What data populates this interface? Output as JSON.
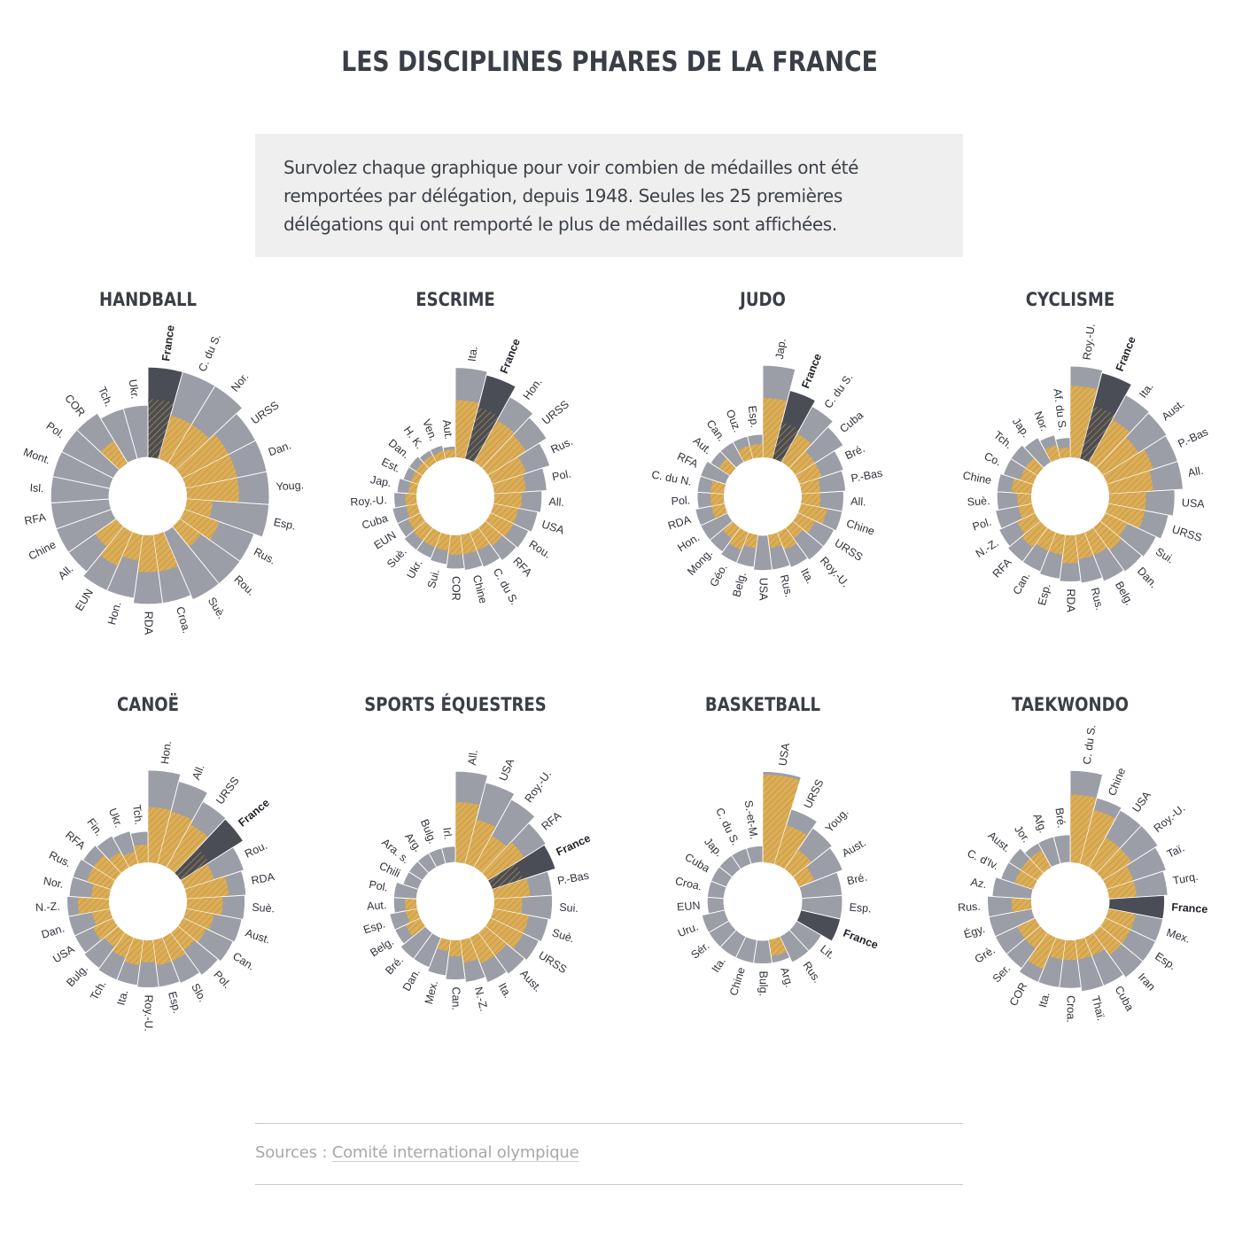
{
  "page": {
    "title": "LES DISCIPLINES PHARES DE LA FRANCE",
    "intro": "Survolez chaque graphique pour voir combien de médailles ont été remportées par délégation, depuis 1948. Seules les 25 premières délégations qui ont remporté le plus de médailles sont affichées.",
    "sources_prefix": "Sources : ",
    "sources_link": "Comité international olympique"
  },
  "colors": {
    "total": "#9b9ea6",
    "gold": "#dcae58",
    "france": "#4a4d56",
    "title": "#3a3e46",
    "box_bg": "#efefef"
  },
  "chart_data": [
    {
      "type": "radial-bar",
      "title": "HANDBALL",
      "categories": [
        "France",
        "C. du S.",
        "Nor.",
        "URSS",
        "Dan.",
        "Youg.",
        "Esp.",
        "Rus.",
        "Rou.",
        "Suè.",
        "Croa.",
        "RDA",
        "Hon.",
        "EUN",
        "All.",
        "Chine",
        "RFA",
        "Isl.",
        "Mont.",
        "Pol.",
        "COR",
        "Tch.",
        "Ukr."
      ],
      "series": [
        {
          "name": "total",
          "values": [
            12,
            12,
            12,
            10,
            10,
            10,
            10,
            8,
            8,
            8,
            7,
            7,
            6,
            6,
            5,
            5,
            5,
            5,
            5,
            5,
            5,
            4,
            4
          ]
        },
        {
          "name": "gold",
          "values": [
            5,
            3,
            3,
            4,
            4,
            4,
            1,
            2,
            1,
            0,
            2,
            2,
            1,
            2,
            1,
            0,
            0,
            0,
            0,
            0,
            1,
            0,
            0
          ]
        }
      ],
      "highlight": "France",
      "rmax": 13
    },
    {
      "type": "radial-bar",
      "title": "ESCRIME",
      "categories": [
        "Ita.",
        "France",
        "Hon.",
        "URSS",
        "Rus.",
        "Pol.",
        "All.",
        "USA",
        "Rou.",
        "RFA",
        "C. du S.",
        "Chine",
        "COR",
        "Sui.",
        "Ukr.",
        "Suè.",
        "EUN",
        "Cuba",
        "Roy.-U.",
        "Jap.",
        "Est.",
        "Dan.",
        "H. K.",
        "Ven.",
        "Aut."
      ],
      "series": [
        {
          "name": "total",
          "values": [
            128,
            118,
            88,
            76,
            58,
            44,
            36,
            32,
            28,
            26,
            22,
            20,
            18,
            14,
            12,
            12,
            10,
            10,
            8,
            6,
            4,
            4,
            3,
            3,
            2
          ]
        },
        {
          "name": "gold",
          "values": [
            52,
            44,
            36,
            32,
            20,
            16,
            12,
            10,
            10,
            8,
            6,
            6,
            6,
            4,
            4,
            4,
            3,
            2,
            2,
            1,
            1,
            1,
            1,
            1,
            1
          ]
        }
      ],
      "highlight": "France",
      "rmax": 140
    },
    {
      "type": "radial-bar",
      "title": "JUDO",
      "categories": [
        "Jap.",
        "France",
        "C. du S.",
        "Cuba",
        "Bré.",
        "P.-Bas",
        "All.",
        "Chine",
        "URSS",
        "Roy.-U.",
        "Ita.",
        "Rus.",
        "USA",
        "Belg.",
        "Géo.",
        "Mong.",
        "Hon.",
        "RDA",
        "Pol.",
        "C. du N.",
        "RFA",
        "Aut.",
        "Can.",
        "Ouz.",
        "Esp."
      ],
      "series": [
        {
          "name": "total",
          "values": [
            96,
            56,
            46,
            36,
            24,
            22,
            20,
            20,
            18,
            18,
            16,
            14,
            14,
            12,
            12,
            10,
            10,
            10,
            8,
            8,
            8,
            6,
            6,
            6,
            6
          ]
        },
        {
          "name": "gold",
          "values": [
            40,
            16,
            12,
            6,
            6,
            4,
            4,
            8,
            4,
            2,
            4,
            2,
            0,
            2,
            4,
            2,
            0,
            2,
            2,
            2,
            0,
            2,
            0,
            2,
            2
          ]
        }
      ],
      "highlight": "France",
      "rmax": 100
    },
    {
      "type": "radial-bar",
      "title": "CYCLISME",
      "categories": [
        "Roy.-U.",
        "France",
        "Ita.",
        "Aust.",
        "P.-Bas",
        "All.",
        "USA",
        "URSS",
        "Sui.",
        "Dan.",
        "Belg.",
        "Rus.",
        "RDA",
        "Esp.",
        "Can.",
        "RFA",
        "N.-Z.",
        "Pol.",
        "Suè.",
        "Chine",
        "Co.",
        "Tch.",
        "Jap.",
        "Nor.",
        "Af. du S."
      ],
      "series": [
        {
          "name": "total",
          "values": [
            85,
            80,
            60,
            58,
            56,
            56,
            44,
            38,
            32,
            30,
            28,
            24,
            22,
            20,
            18,
            18,
            16,
            14,
            12,
            12,
            10,
            10,
            8,
            6,
            4
          ]
        },
        {
          "name": "gold",
          "values": [
            52,
            30,
            24,
            18,
            24,
            20,
            14,
            14,
            6,
            8,
            6,
            6,
            8,
            4,
            4,
            6,
            4,
            2,
            2,
            4,
            2,
            2,
            0,
            2,
            1
          ]
        }
      ],
      "highlight": "France",
      "rmax": 90
    },
    {
      "type": "radial-bar",
      "title": "CANOË",
      "categories": [
        "Hon.",
        "All.",
        "URSS",
        "France",
        "Rou.",
        "RDA",
        "Suè.",
        "Aust.",
        "Can.",
        "Pol.",
        "Slo.",
        "Esp.",
        "Roy.-U.",
        "Ita.",
        "Tch.",
        "Bulg.",
        "USA",
        "Dan.",
        "N.-Z.",
        "Nor.",
        "Rus.",
        "RFA",
        "Fin.",
        "Ukr.",
        "Tch."
      ],
      "series": [
        {
          "name": "total",
          "values": [
            106,
            90,
            70,
            68,
            48,
            44,
            42,
            40,
            38,
            34,
            30,
            28,
            28,
            26,
            26,
            24,
            22,
            22,
            22,
            20,
            20,
            18,
            16,
            14,
            12
          ]
        },
        {
          "name": "gold",
          "values": [
            38,
            36,
            30,
            14,
            12,
            22,
            16,
            10,
            8,
            6,
            8,
            8,
            6,
            8,
            6,
            4,
            6,
            4,
            12,
            4,
            8,
            8,
            4,
            2,
            4
          ]
        }
      ],
      "highlight": "France",
      "rmax": 110
    },
    {
      "type": "radial-bar",
      "title": "SPORTS ÉQUESTRES",
      "categories": [
        "All.",
        "USA",
        "Roy.-U.",
        "RFA",
        "France",
        "P.-Bas",
        "Sui.",
        "Suè.",
        "URSS",
        "Aust.",
        "Ita.",
        "N.-Z.",
        "Can.",
        "Mex.",
        "Dan.",
        "Bré.",
        "Belg.",
        "Esp.",
        "Aut.",
        "Pol.",
        "Chili",
        "Ara. s.",
        "Arg.",
        "Bulg.",
        "Irl."
      ],
      "series": [
        {
          "name": "total",
          "values": [
            64,
            54,
            46,
            36,
            34,
            26,
            26,
            24,
            22,
            20,
            18,
            14,
            12,
            10,
            8,
            8,
            6,
            6,
            4,
            4,
            2,
            2,
            2,
            2,
            2
          ]
        },
        {
          "name": "gold",
          "values": [
            28,
            16,
            10,
            14,
            8,
            10,
            6,
            10,
            10,
            6,
            6,
            4,
            2,
            1,
            0,
            0,
            2,
            1,
            1,
            0,
            0,
            0,
            0,
            0,
            0
          ]
        }
      ],
      "highlight": "France",
      "rmax": 68
    },
    {
      "type": "radial-bar",
      "title": "BASKETBALL",
      "categories": [
        "USA",
        "URSS",
        "Youg.",
        "Aust.",
        "Bré.",
        "Esp.",
        "France",
        "Lit.",
        "Rus.",
        "Arg.",
        "Bulg.",
        "Chine",
        "Ita.",
        "Sér.",
        "Uru.",
        "EUN",
        "Croa.",
        "Cuba",
        "Jap.",
        "C. du S.",
        "S.-et-M."
      ],
      "series": [
        {
          "name": "total",
          "values": [
            30,
            12,
            9,
            8,
            6,
            6,
            6,
            3,
            3,
            2,
            2,
            2,
            2,
            2,
            2,
            1,
            1,
            1,
            1,
            1,
            1
          ]
        },
        {
          "name": "gold",
          "values": [
            28,
            6,
            2,
            1,
            0,
            0,
            0,
            0,
            0,
            1,
            0,
            0,
            0,
            0,
            0,
            0,
            0,
            0,
            0,
            0,
            0
          ]
        }
      ],
      "highlight": "France",
      "rmax": 32
    },
    {
      "type": "radial-bar",
      "title": "TAEKWONDO",
      "categories": [
        "C. du S.",
        "Chine",
        "USA",
        "Roy.-U.",
        "Taï.",
        "Turq.",
        "France",
        "Mex.",
        "Esp.",
        "Iran",
        "Cuba",
        "Thaï.",
        "Croa.",
        "Ita.",
        "COR",
        "Ser.",
        "Grè.",
        "Égy.",
        "Rus.",
        "Az.",
        "C. d'Iv.",
        "Aust.",
        "Jor.",
        "Afg.",
        "Bré."
      ],
      "series": [
        {
          "name": "total",
          "values": [
            22,
            12,
            11,
            11,
            10,
            9,
            8,
            8,
            8,
            8,
            7,
            7,
            6,
            6,
            6,
            5,
            5,
            5,
            5,
            4,
            3,
            3,
            2,
            2,
            2
          ]
        },
        {
          "name": "gold",
          "values": [
            12,
            8,
            3,
            3,
            2,
            2,
            0,
            2,
            2,
            2,
            1,
            1,
            1,
            1,
            3,
            1,
            1,
            0,
            1,
            0,
            1,
            1,
            1,
            0,
            0
          ]
        }
      ],
      "highlight": "France",
      "rmax": 23
    }
  ]
}
